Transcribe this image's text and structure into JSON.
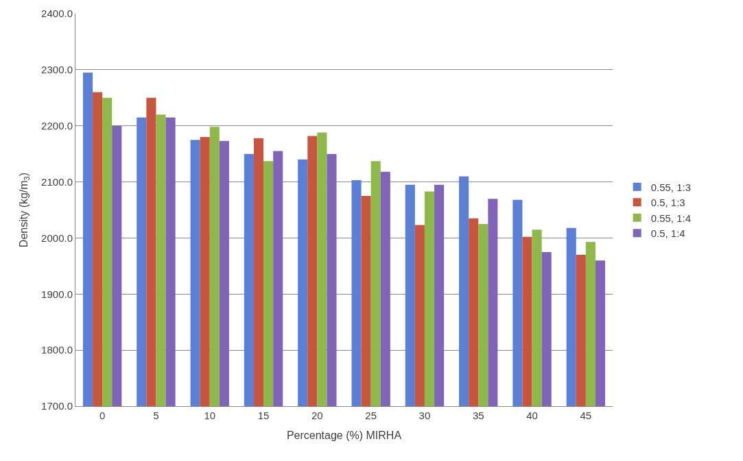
{
  "chart_data": {
    "type": "bar",
    "xlabel": "Percentage (%) MIRHA",
    "ylabel": "Density (kg/m$_{3}$)",
    "categories": [
      "0",
      "5",
      "10",
      "15",
      "20",
      "25",
      "30",
      "35",
      "40",
      "45"
    ],
    "series": [
      {
        "name": "0.55, 1:3",
        "color": "#5b7fd6",
        "values": [
          2295,
          2215,
          2175,
          2150,
          2140,
          2103,
          2095,
          2110,
          2068,
          2018
        ]
      },
      {
        "name": "0.5, 1:3",
        "color": "#c8553d",
        "values": [
          2260,
          2250,
          2180,
          2178,
          2182,
          2075,
          2023,
          2035,
          2002,
          1970
        ]
      },
      {
        "name": "0.55, 1:4",
        "color": "#8fb84a",
        "values": [
          2250,
          2220,
          2198,
          2137,
          2188,
          2137,
          2083,
          2025,
          2015,
          1993
        ]
      },
      {
        "name": "0.5, 1:4",
        "color": "#8064b8",
        "values": [
          2200,
          2215,
          2173,
          2155,
          2150,
          2118,
          2095,
          2070,
          1975,
          1960
        ]
      }
    ],
    "ylim": [
      1700,
      2400
    ],
    "yticks": [
      {
        "value": 1700,
        "label": "1700.0"
      },
      {
        "value": 1800,
        "label": "1800.0"
      },
      {
        "value": 1900,
        "label": "1900.0"
      },
      {
        "value": 2000,
        "label": "2000.0"
      },
      {
        "value": 2100,
        "label": "2100.0"
      },
      {
        "value": 2200,
        "label": "2200.0"
      },
      {
        "value": 2300,
        "label": "2300.0"
      },
      {
        "value": 2400,
        "label": "2400.0"
      }
    ],
    "grid": "y",
    "legend": "right"
  }
}
